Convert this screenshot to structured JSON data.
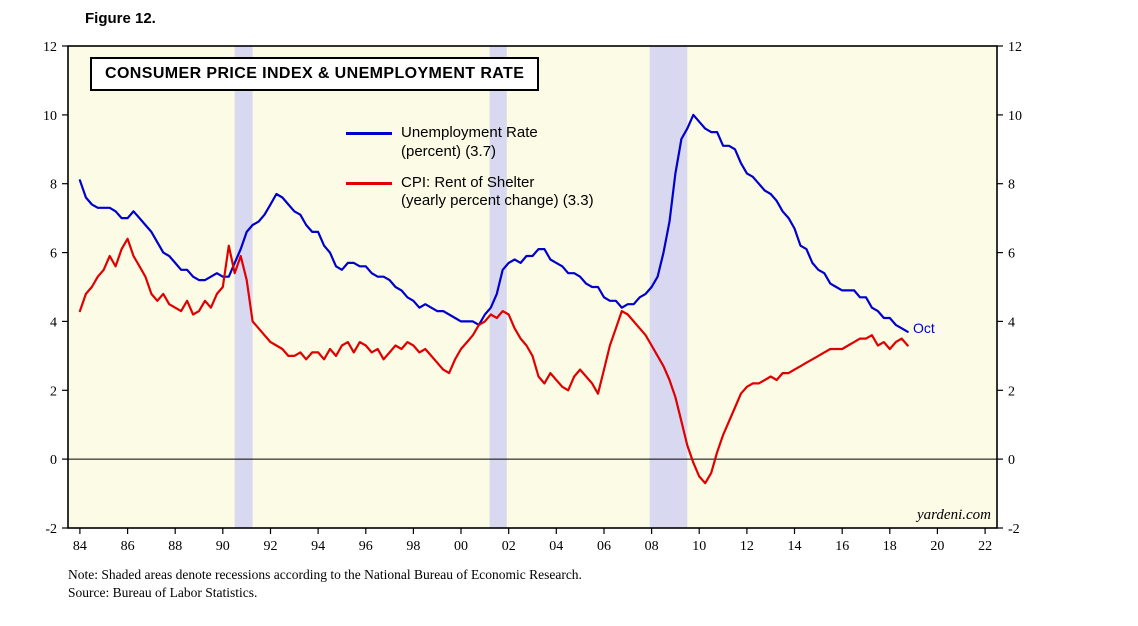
{
  "figure_label": "Figure 12.",
  "chart_data": {
    "type": "line",
    "title": "CONSUMER PRICE INDEX & UNEMPLOYMENT RATE",
    "xlabel": "",
    "ylabel": "",
    "xlim": [
      1983.5,
      2022.5
    ],
    "ylim": [
      -2,
      12
    ],
    "grid": false,
    "zero_line": true,
    "legend_position": "top-center-inside",
    "plot_background": "#FBFBE6",
    "recession_band_color": "#D8D8F0",
    "recession_bands": [
      [
        1990.5,
        1991.25
      ],
      [
        2001.2,
        2001.92
      ],
      [
        2007.92,
        2009.5
      ]
    ],
    "x_ticks": [
      1984,
      1986,
      1988,
      1990,
      1992,
      1994,
      1996,
      1998,
      2000,
      2002,
      2004,
      2006,
      2008,
      2010,
      2012,
      2014,
      2016,
      2018,
      2020,
      2022
    ],
    "x_tick_labels": [
      "84",
      "86",
      "88",
      "90",
      "92",
      "94",
      "96",
      "98",
      "00",
      "02",
      "04",
      "06",
      "08",
      "10",
      "12",
      "14",
      "16",
      "18",
      "20",
      "22"
    ],
    "y_ticks": [
      -2,
      0,
      2,
      4,
      6,
      8,
      10,
      12
    ],
    "series": [
      {
        "name": "Unemployment Rate (percent)",
        "latest_value": 3.7,
        "latest_label": "Oct",
        "color": "#0000CD",
        "x_start": 1984.0,
        "x_step": 0.25,
        "values": [
          8.1,
          7.6,
          7.4,
          7.3,
          7.3,
          7.3,
          7.2,
          7.0,
          7.0,
          7.2,
          7.0,
          6.8,
          6.6,
          6.3,
          6.0,
          5.9,
          5.7,
          5.5,
          5.5,
          5.3,
          5.2,
          5.2,
          5.3,
          5.4,
          5.3,
          5.3,
          5.7,
          6.1,
          6.6,
          6.8,
          6.9,
          7.1,
          7.4,
          7.7,
          7.6,
          7.4,
          7.2,
          7.1,
          6.8,
          6.6,
          6.6,
          6.2,
          6.0,
          5.6,
          5.5,
          5.7,
          5.7,
          5.6,
          5.6,
          5.4,
          5.3,
          5.3,
          5.2,
          5.0,
          4.9,
          4.7,
          4.6,
          4.4,
          4.5,
          4.4,
          4.3,
          4.3,
          4.2,
          4.1,
          4.0,
          4.0,
          4.0,
          3.9,
          4.2,
          4.4,
          4.8,
          5.5,
          5.7,
          5.8,
          5.7,
          5.9,
          5.9,
          6.1,
          6.1,
          5.8,
          5.7,
          5.6,
          5.4,
          5.4,
          5.3,
          5.1,
          5.0,
          5.0,
          4.7,
          4.6,
          4.6,
          4.4,
          4.5,
          4.5,
          4.7,
          4.8,
          5.0,
          5.3,
          6.0,
          6.9,
          8.3,
          9.3,
          9.6,
          10.0,
          9.8,
          9.6,
          9.5,
          9.5,
          9.1,
          9.1,
          9.0,
          8.6,
          8.3,
          8.2,
          8.0,
          7.8,
          7.7,
          7.5,
          7.2,
          7.0,
          6.7,
          6.2,
          6.1,
          5.7,
          5.5,
          5.4,
          5.1,
          5.0,
          4.9,
          4.9,
          4.9,
          4.7,
          4.7,
          4.4,
          4.3,
          4.1,
          4.1,
          3.9,
          3.8,
          3.7
        ]
      },
      {
        "name": "CPI: Rent of Shelter (yearly percent change)",
        "latest_value": 3.3,
        "color": "#E00000",
        "x_start": 1984.0,
        "x_step": 0.25,
        "values": [
          4.3,
          4.8,
          5.0,
          5.3,
          5.5,
          5.9,
          5.6,
          6.1,
          6.4,
          5.9,
          5.6,
          5.3,
          4.8,
          4.6,
          4.8,
          4.5,
          4.4,
          4.3,
          4.6,
          4.2,
          4.3,
          4.6,
          4.4,
          4.8,
          5.0,
          6.2,
          5.4,
          5.9,
          5.2,
          4.0,
          3.8,
          3.6,
          3.4,
          3.3,
          3.2,
          3.0,
          3.0,
          3.1,
          2.9,
          3.1,
          3.1,
          2.9,
          3.2,
          3.0,
          3.3,
          3.4,
          3.1,
          3.4,
          3.3,
          3.1,
          3.2,
          2.9,
          3.1,
          3.3,
          3.2,
          3.4,
          3.3,
          3.1,
          3.2,
          3.0,
          2.8,
          2.6,
          2.5,
          2.9,
          3.2,
          3.4,
          3.6,
          3.9,
          4.0,
          4.2,
          4.1,
          4.3,
          4.2,
          3.8,
          3.5,
          3.3,
          3.0,
          2.4,
          2.2,
          2.5,
          2.3,
          2.1,
          2.0,
          2.4,
          2.6,
          2.4,
          2.2,
          1.9,
          2.6,
          3.3,
          3.8,
          4.3,
          4.2,
          4.0,
          3.8,
          3.6,
          3.3,
          3.0,
          2.7,
          2.3,
          1.8,
          1.1,
          0.4,
          -0.1,
          -0.5,
          -0.7,
          -0.4,
          0.2,
          0.7,
          1.1,
          1.5,
          1.9,
          2.1,
          2.2,
          2.2,
          2.3,
          2.4,
          2.3,
          2.5,
          2.5,
          2.6,
          2.7,
          2.8,
          2.9,
          3.0,
          3.1,
          3.2,
          3.2,
          3.2,
          3.3,
          3.4,
          3.5,
          3.5,
          3.6,
          3.3,
          3.4,
          3.2,
          3.4,
          3.5,
          3.3
        ]
      }
    ]
  },
  "legend": {
    "items": [
      {
        "label": "Unemployment Rate\n(percent) (3.7)",
        "color": "#0000CD"
      },
      {
        "label": "CPI: Rent of Shelter\n(yearly percent change) (3.3)",
        "color": "#E00000"
      }
    ]
  },
  "annotations": {
    "last_point_label": "Oct",
    "watermark": "yardeni.com"
  },
  "notes": {
    "note": "Note: Shaded areas denote recessions according to the National Bureau of Economic Research.",
    "source": "Source: Bureau of Labor Statistics."
  }
}
